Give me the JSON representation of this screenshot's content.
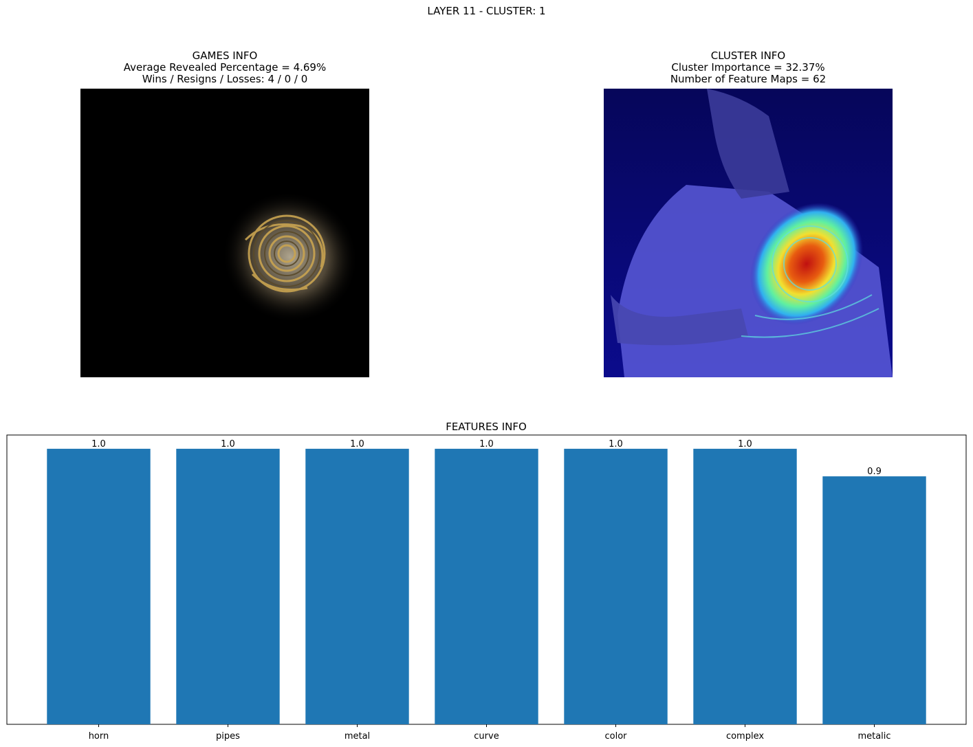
{
  "figure": {
    "title": "LAYER 11 - CLUSTER: 1"
  },
  "games_panel": {
    "title": "GAMES INFO",
    "line1": "Average Revealed Percentage = 4.69%",
    "line2": "Wins / Resigns / Losses: 4 / 0 / 0",
    "image": "masked-horn-image"
  },
  "cluster_panel": {
    "title": "CLUSTER INFO",
    "line1": "Cluster Importance = 32.37%",
    "line2": "Number of Feature Maps = 62",
    "image": "heatmap-overlay-horn-player"
  },
  "chart_data": {
    "type": "bar",
    "title": "FEATURES INFO",
    "categories": [
      "horn",
      "pipes",
      "metal",
      "curve",
      "color",
      "complex",
      "metalic"
    ],
    "values": [
      1.0,
      1.0,
      1.0,
      1.0,
      1.0,
      1.0,
      0.9
    ],
    "data_labels": [
      "1.0",
      "1.0",
      "1.0",
      "1.0",
      "1.0",
      "1.0",
      "0.9"
    ],
    "ylim": [
      0,
      1.05
    ],
    "y_axis_visible": false,
    "bar_color": "#1f77b4",
    "grid": false
  }
}
